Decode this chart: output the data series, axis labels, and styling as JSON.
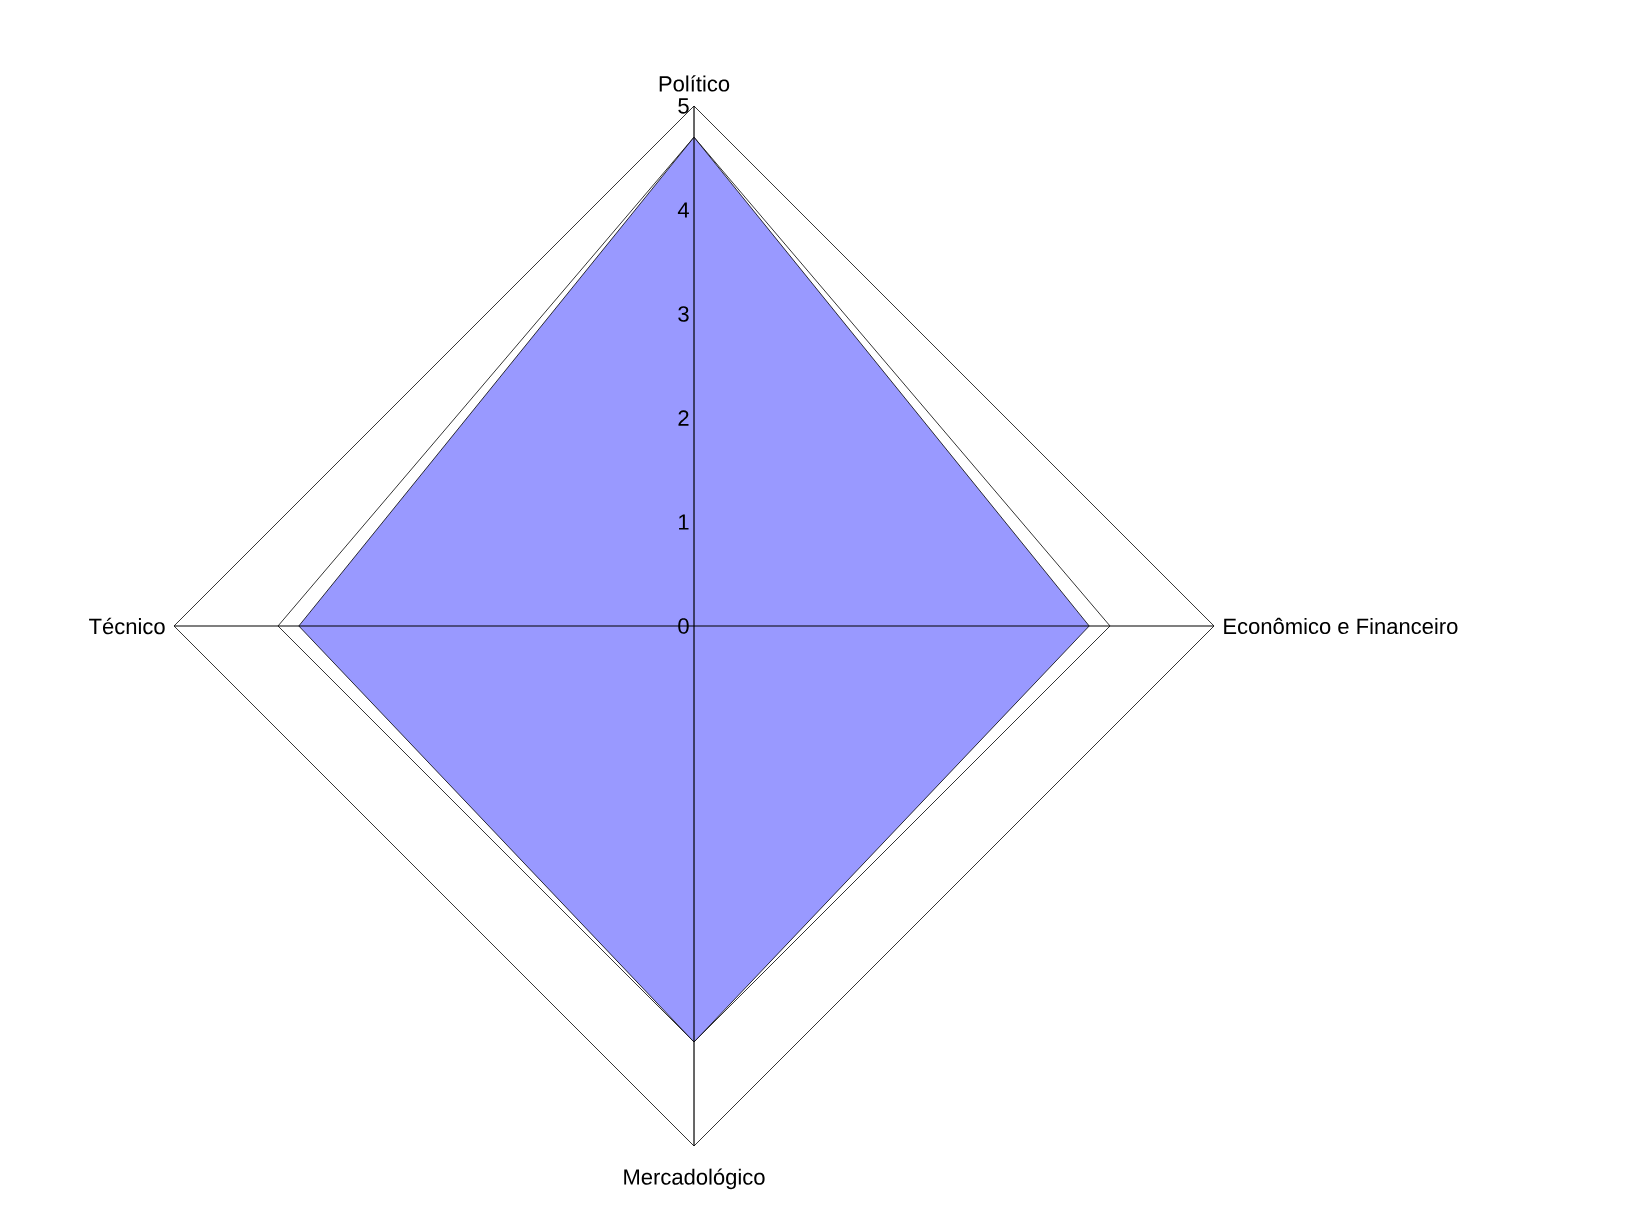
{
  "chart_data": {
    "type": "radar",
    "categories": [
      "Político",
      "Econômico e Financeiro",
      "Mercadológico",
      "Técnico"
    ],
    "series": [
      {
        "color": "#ffffff",
        "values": [
          4.7,
          4.0,
          4.0,
          4.0
        ]
      },
      {
        "color": "#9999ff",
        "values": [
          4.7,
          3.8,
          4.0,
          3.8
        ]
      }
    ],
    "ylim": [
      0,
      5
    ],
    "yticks": [
      0,
      1,
      2,
      3,
      4,
      5
    ],
    "grid": false,
    "legend": false,
    "marker": "none"
  }
}
